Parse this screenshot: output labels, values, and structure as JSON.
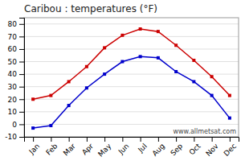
{
  "chart_data": {
    "type": "line",
    "title": "Caribou : temperatures (°F)",
    "categories": [
      "Jan",
      "Feb",
      "Mar",
      "Apr",
      "May",
      "Jun",
      "Jul",
      "Aug",
      "Sep",
      "Oct",
      "Nov",
      "Dec"
    ],
    "series": [
      {
        "color": "#cc0000",
        "marker": "square",
        "values": [
          20,
          23,
          34,
          46,
          61,
          71,
          76,
          74,
          63,
          51,
          38,
          23
        ]
      },
      {
        "color": "#0000cc",
        "marker": "square",
        "values": [
          -3,
          -1,
          15,
          29,
          40,
          50,
          54,
          53,
          42,
          34,
          23,
          5
        ]
      }
    ],
    "ylim": [
      -10,
      85
    ],
    "yticks": [
      -10,
      0,
      10,
      20,
      30,
      40,
      50,
      60,
      70,
      80
    ],
    "grid": true,
    "annotations": [
      "www.allmetsat.com"
    ]
  }
}
